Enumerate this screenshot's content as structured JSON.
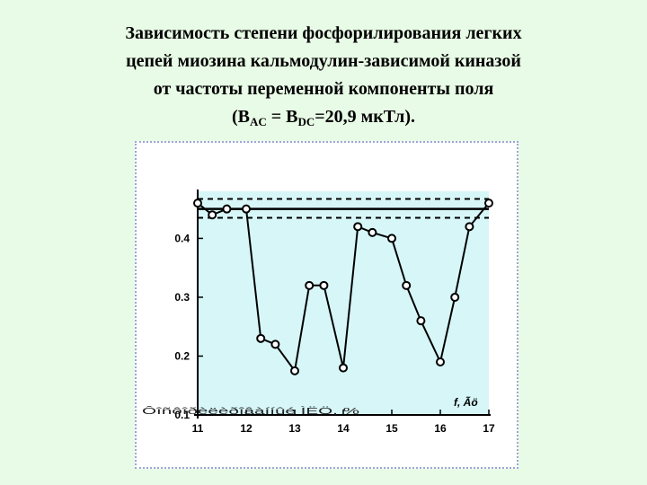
{
  "title": {
    "line1": "Зависимость степени фосфорилирования легких",
    "line2": "цепей миозина кальмодулин-зависимой киназой",
    "line3": "от частоты переменной компоненты поля",
    "line4_part1": "(B",
    "line4_sub1": "AC",
    "line4_part2": " = B",
    "line4_sub2": "DC",
    "line4_part3": "=20,9 мкТл)."
  },
  "chart_data": {
    "type": "line",
    "x": [
      11.0,
      11.3,
      11.6,
      12.0,
      12.3,
      12.6,
      13.0,
      13.3,
      13.6,
      14.0,
      14.3,
      14.6,
      15.0,
      15.3,
      15.6,
      16.0,
      16.3,
      16.6,
      17.0
    ],
    "series": [
      {
        "values": [
          0.46,
          0.44,
          0.45,
          0.45,
          0.23,
          0.22,
          0.175,
          0.32,
          0.32,
          0.18,
          0.42,
          0.41,
          0.4,
          0.32,
          0.26,
          0.19,
          0.3,
          0.42,
          0.46
        ]
      }
    ],
    "reference_line": 0.45,
    "band": [
      0.435,
      0.467
    ],
    "xlim": [
      11,
      17
    ],
    "ylim": [
      0.1,
      0.48
    ],
    "x_ticks": [
      11,
      12,
      13,
      14,
      15,
      16,
      17
    ],
    "x_tick_labels": [
      "11",
      "12",
      "13",
      "14",
      "15",
      "16",
      "17"
    ],
    "y_ticks": [
      0.1,
      0.2,
      0.3,
      0.4
    ],
    "y_tick_labels": [
      "0.1",
      "0.2",
      "0.3",
      "0.4"
    ],
    "x_unit_label": "f, Ãö",
    "y_axis_garbled_label": "Ôîñôîðèëèðîâàííûé ÌËÖ, %",
    "grid": false,
    "colors": {
      "plot_background": "#d7f6f8",
      "line": "#000000",
      "marker_fill": "#ffffff",
      "page_background": "#e8fbe6",
      "frame_dots": "#9aa7d6"
    }
  }
}
